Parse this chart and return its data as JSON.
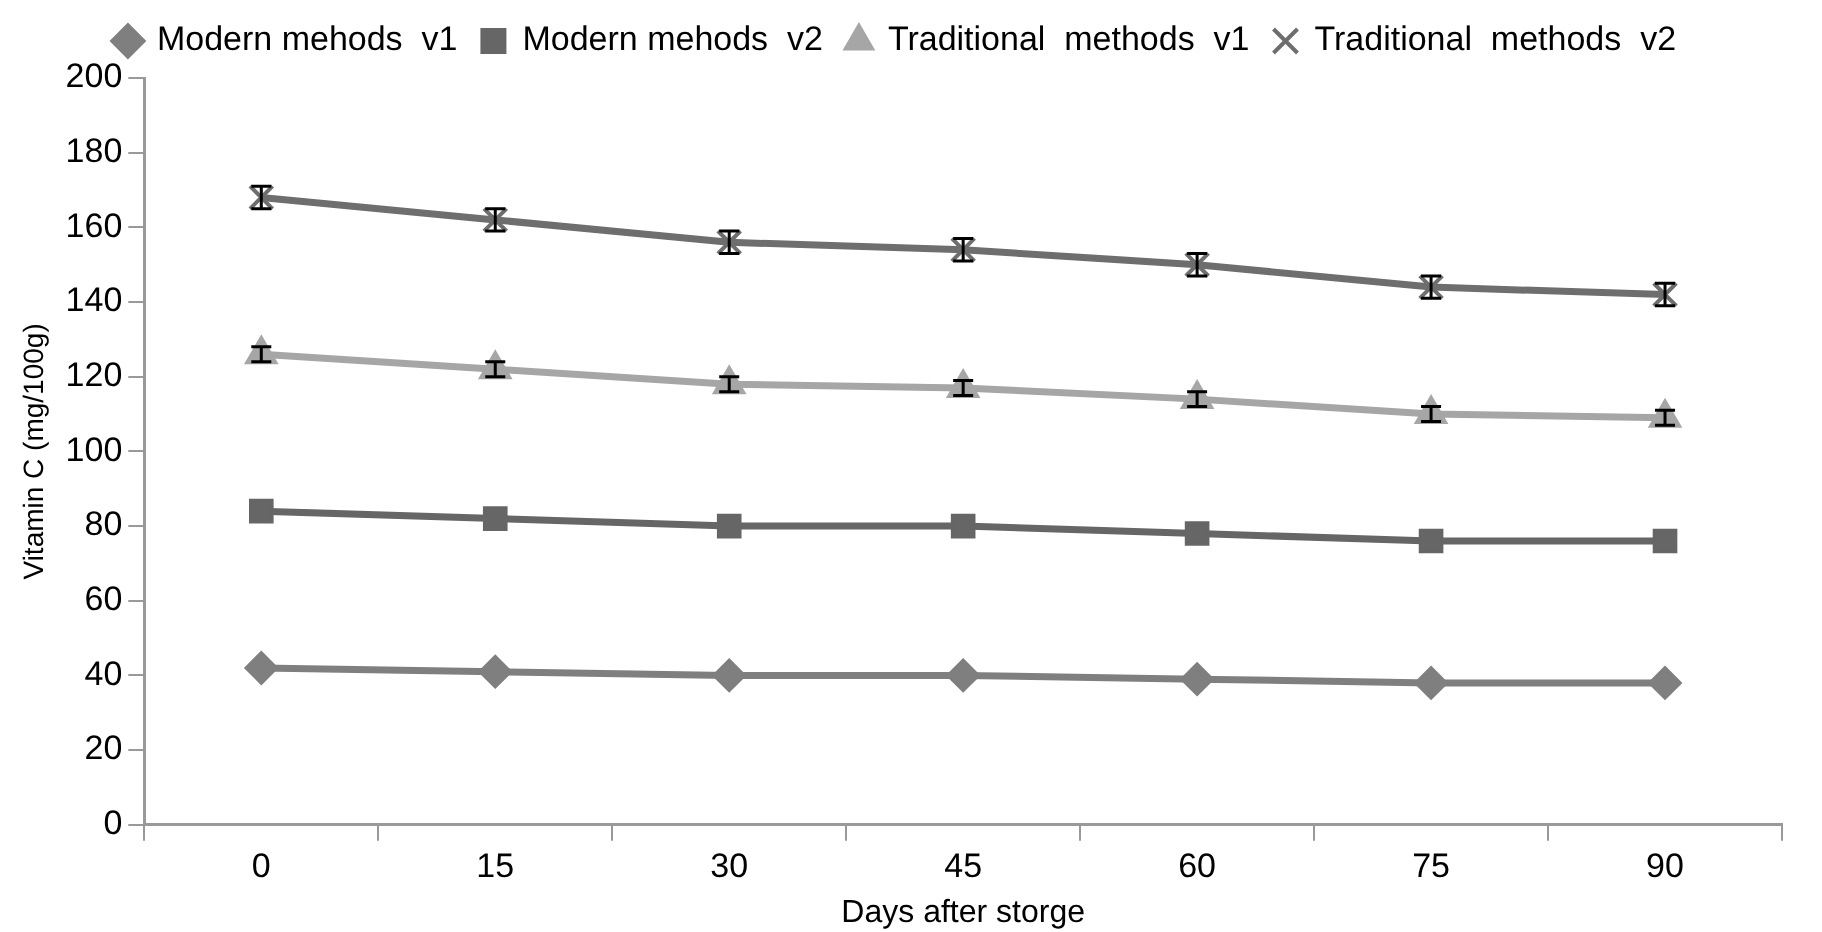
{
  "chart_data": {
    "type": "line",
    "xlabel": "Days after storge",
    "ylabel": "Vitamin C (mg/100g)",
    "categories": [
      "0",
      "15",
      "30",
      "45",
      "60",
      "75",
      "90"
    ],
    "ylim": [
      0,
      200
    ],
    "yticks": [
      0,
      20,
      40,
      60,
      80,
      100,
      120,
      140,
      160,
      180,
      200
    ],
    "grid": false,
    "legend": "top",
    "line_style": "solid",
    "series": [
      {
        "name": "Modern mehods  v1",
        "color": "#7f7f7f",
        "marker": "diamond",
        "values": [
          42,
          41,
          40,
          40,
          39,
          38,
          38
        ]
      },
      {
        "name": "Modern mehods  v2",
        "color": "#666666",
        "marker": "square",
        "values": [
          84,
          82,
          80,
          80,
          78,
          76,
          76
        ]
      },
      {
        "name": "Traditional  methods  v1",
        "color": "#a6a6a6",
        "marker": "triangle",
        "values": [
          126,
          122,
          118,
          117,
          114,
          110,
          109
        ],
        "errors": [
          2,
          2,
          2,
          2,
          2,
          2,
          2
        ]
      },
      {
        "name": "Traditional  methods  v2",
        "color": "#6e6e6e",
        "marker": "cross",
        "values": [
          168,
          162,
          156,
          154,
          150,
          144,
          142
        ],
        "errors": [
          3,
          3,
          3,
          3,
          3,
          3,
          3
        ]
      }
    ]
  }
}
